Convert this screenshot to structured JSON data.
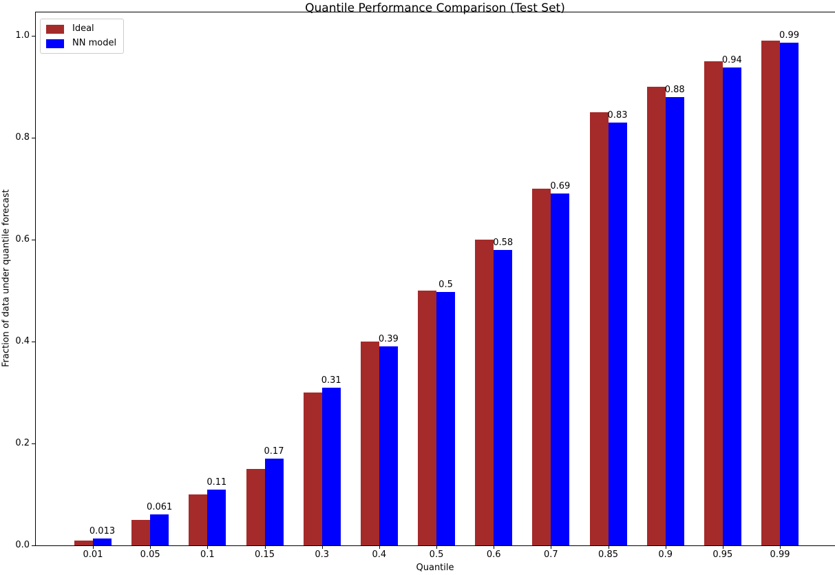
{
  "chart_data": {
    "type": "bar",
    "title": "Quantile Performance Comparison (Test Set)",
    "xlabel": "Quantile",
    "ylabel": "Fraction of data under quantile forecast",
    "categories": [
      "0.01",
      "0.05",
      "0.1",
      "0.15",
      "0.3",
      "0.4",
      "0.5",
      "0.6",
      "0.7",
      "0.85",
      "0.9",
      "0.95",
      "0.99"
    ],
    "series": [
      {
        "name": "Ideal",
        "color": "#A52A2A",
        "values": [
          0.01,
          0.05,
          0.1,
          0.15,
          0.3,
          0.4,
          0.5,
          0.6,
          0.7,
          0.85,
          0.9,
          0.95,
          0.99
        ]
      },
      {
        "name": "NN model",
        "color": "#0000FF",
        "values": [
          0.013,
          0.061,
          0.11,
          0.17,
          0.31,
          0.39,
          0.497,
          0.58,
          0.69,
          0.83,
          0.88,
          0.938,
          0.987
        ],
        "bar_labels": [
          "0.013",
          "0.061",
          "0.11",
          "0.17",
          "0.31",
          "0.39",
          "0.5",
          "0.58",
          "0.69",
          "0.83",
          "0.88",
          "0.94",
          "0.99"
        ]
      }
    ],
    "yticks": [
      "0.0",
      "0.2",
      "0.4",
      "0.6",
      "0.8",
      "1.0"
    ],
    "ylim": [
      0,
      1.047
    ],
    "grid": false,
    "legend_position": "upper left",
    "background": "#ffffff",
    "text_color": "#000000"
  }
}
